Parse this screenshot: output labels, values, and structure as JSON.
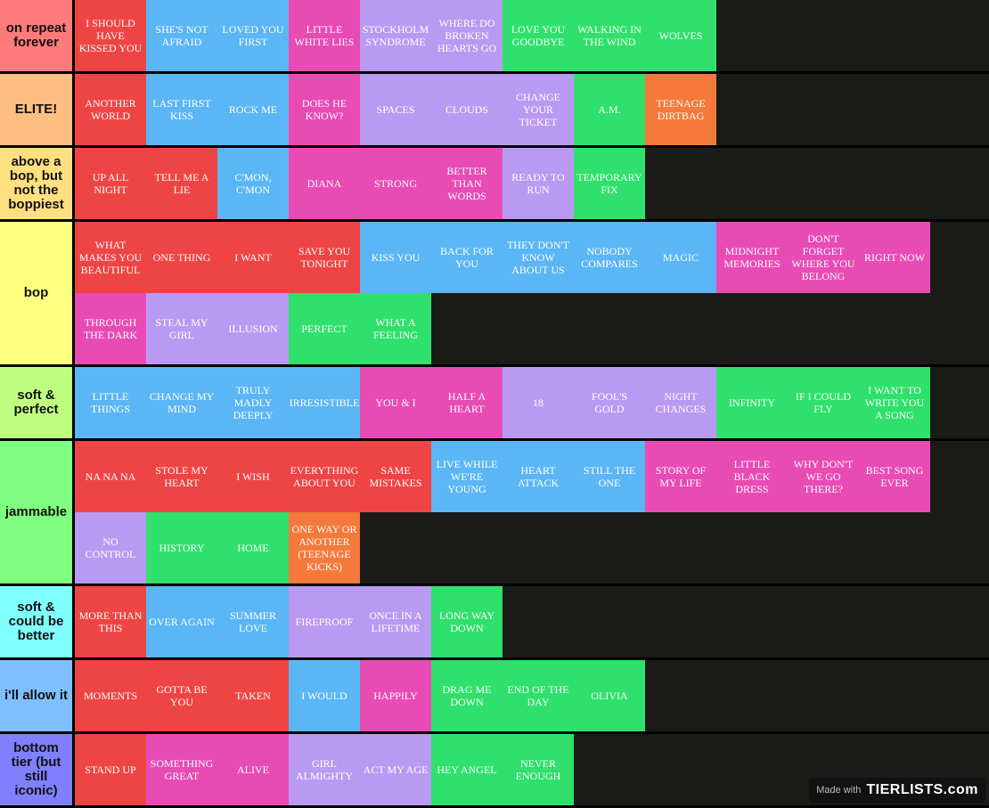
{
  "colors": {
    "red": "#ef4444",
    "blue": "#5bb6f5",
    "pink": "#e84bb4",
    "purple": "#b99af2",
    "green": "#2fe06c",
    "orange": "#f4793a",
    "background": "#1a1a17"
  },
  "tiers": [
    {
      "label": "on repeat forever",
      "color": "#ff7b7b",
      "items": [
        {
          "text": "I SHOULD HAVE KISSED YOU",
          "color": "red"
        },
        {
          "text": "SHE'S NOT AFRAID",
          "color": "blue"
        },
        {
          "text": "LOVED YOU FIRST",
          "color": "blue"
        },
        {
          "text": "LITTLE WHITE LIES",
          "color": "pink"
        },
        {
          "text": "STOCKHOLM SYNDROME",
          "color": "purple"
        },
        {
          "text": "WHERE DO BROKEN HEARTS GO",
          "color": "purple"
        },
        {
          "text": "LOVE YOU GOODBYE",
          "color": "green"
        },
        {
          "text": "WALKING IN THE WIND",
          "color": "green"
        },
        {
          "text": "WOLVES",
          "color": "green"
        }
      ]
    },
    {
      "label": "ELITE!",
      "color": "#ffbf80",
      "items": [
        {
          "text": "ANOTHER WORLD",
          "color": "red"
        },
        {
          "text": "LAST FIRST KISS",
          "color": "blue"
        },
        {
          "text": "ROCK ME",
          "color": "blue"
        },
        {
          "text": "DOES HE KNOW?",
          "color": "pink"
        },
        {
          "text": "SPACES",
          "color": "purple"
        },
        {
          "text": "CLOUDS",
          "color": "purple"
        },
        {
          "text": "CHANGE YOUR TICKET",
          "color": "purple"
        },
        {
          "text": "A.M.",
          "color": "green"
        },
        {
          "text": "TEENAGE DIRTBAG",
          "color": "orange"
        }
      ]
    },
    {
      "label": "above a bop, but not the boppiest",
      "color": "#ffdf80",
      "items": [
        {
          "text": "UP ALL NIGHT",
          "color": "red"
        },
        {
          "text": "TELL ME A LIE",
          "color": "red"
        },
        {
          "text": "C'MON, C'MON",
          "color": "blue"
        },
        {
          "text": "DIANA",
          "color": "pink"
        },
        {
          "text": "STRONG",
          "color": "pink"
        },
        {
          "text": "BETTER THAN WORDS",
          "color": "pink"
        },
        {
          "text": "READY TO RUN",
          "color": "purple"
        },
        {
          "text": "TEMPORARY FIX",
          "color": "green"
        }
      ]
    },
    {
      "label": "bop",
      "color": "#ffff80",
      "items": [
        {
          "text": "WHAT MAKES YOU BEAUTIFUL",
          "color": "red"
        },
        {
          "text": "ONE THING",
          "color": "red"
        },
        {
          "text": "I WANT",
          "color": "red"
        },
        {
          "text": "SAVE YOU TONIGHT",
          "color": "red"
        },
        {
          "text": "KISS YOU",
          "color": "blue"
        },
        {
          "text": "BACK FOR YOU",
          "color": "blue"
        },
        {
          "text": "THEY DON'T KNOW ABOUT US",
          "color": "blue"
        },
        {
          "text": "NOBODY COMPARES",
          "color": "blue"
        },
        {
          "text": "MAGIC",
          "color": "blue"
        },
        {
          "text": "MIDNIGHT MEMORIES",
          "color": "pink"
        },
        {
          "text": "DON'T FORGET WHERE YOU BELONG",
          "color": "pink"
        },
        {
          "text": "RIGHT NOW",
          "color": "pink"
        },
        {
          "text": "THROUGH THE DARK",
          "color": "pink"
        },
        {
          "text": "STEAL MY GIRL",
          "color": "purple"
        },
        {
          "text": "ILLUSION",
          "color": "purple"
        },
        {
          "text": "PERFECT",
          "color": "green"
        },
        {
          "text": "WHAT A FEELING",
          "color": "green"
        }
      ]
    },
    {
      "label": "soft & perfect",
      "color": "#bfff80",
      "items": [
        {
          "text": "LITTLE THINGS",
          "color": "blue"
        },
        {
          "text": "CHANGE MY MIND",
          "color": "blue"
        },
        {
          "text": "TRULY MADLY DEEPLY",
          "color": "blue"
        },
        {
          "text": "IRRESISTIBLE",
          "color": "blue"
        },
        {
          "text": "YOU & I",
          "color": "pink"
        },
        {
          "text": "HALF A HEART",
          "color": "pink"
        },
        {
          "text": "18",
          "color": "purple"
        },
        {
          "text": "FOOL'S GOLD",
          "color": "purple"
        },
        {
          "text": "NIGHT CHANGES",
          "color": "purple"
        },
        {
          "text": "INFINITY",
          "color": "green"
        },
        {
          "text": "IF I COULD FLY",
          "color": "green"
        },
        {
          "text": "I WANT TO WRITE YOU A SONG",
          "color": "green"
        }
      ]
    },
    {
      "label": "jammable",
      "color": "#80ff80",
      "items": [
        {
          "text": "NA NA NA",
          "color": "red"
        },
        {
          "text": "STOLE MY HEART",
          "color": "red"
        },
        {
          "text": "I WISH",
          "color": "red"
        },
        {
          "text": "EVERYTHING ABOUT YOU",
          "color": "red"
        },
        {
          "text": "SAME MISTAKES",
          "color": "red"
        },
        {
          "text": "LIVE WHILE WE'RE YOUNG",
          "color": "blue"
        },
        {
          "text": "HEART ATTACK",
          "color": "blue"
        },
        {
          "text": "STILL THE ONE",
          "color": "blue"
        },
        {
          "text": "STORY OF MY LIFE",
          "color": "pink"
        },
        {
          "text": "LITTLE BLACK DRESS",
          "color": "pink"
        },
        {
          "text": "WHY DON'T WE GO THERE?",
          "color": "pink"
        },
        {
          "text": "BEST SONG EVER",
          "color": "pink"
        },
        {
          "text": "NO CONTROL",
          "color": "purple"
        },
        {
          "text": "HISTORY",
          "color": "green"
        },
        {
          "text": "HOME",
          "color": "green"
        },
        {
          "text": "ONE WAY OR ANOTHER (TEENAGE KICKS)",
          "color": "orange"
        }
      ]
    },
    {
      "label": "soft & could be better",
      "color": "#80ffff",
      "items": [
        {
          "text": "MORE THAN THIS",
          "color": "red"
        },
        {
          "text": "OVER AGAIN",
          "color": "blue"
        },
        {
          "text": "SUMMER LOVE",
          "color": "blue"
        },
        {
          "text": "FIREPROOF",
          "color": "purple"
        },
        {
          "text": "ONCE IN A LIFETIME",
          "color": "purple"
        },
        {
          "text": "LONG WAY DOWN",
          "color": "green"
        }
      ]
    },
    {
      "label": "i'll allow it",
      "color": "#80bfff",
      "items": [
        {
          "text": "MOMENTS",
          "color": "red"
        },
        {
          "text": "GOTTA BE YOU",
          "color": "red"
        },
        {
          "text": "TAKEN",
          "color": "red"
        },
        {
          "text": "I WOULD",
          "color": "blue"
        },
        {
          "text": "HAPPILY",
          "color": "pink"
        },
        {
          "text": "DRAG ME DOWN",
          "color": "green"
        },
        {
          "text": "END OF THE DAY",
          "color": "green"
        },
        {
          "text": "OLIVIA",
          "color": "green"
        }
      ]
    },
    {
      "label": "bottom tier (but still iconic)",
      "color": "#8080ff",
      "items": [
        {
          "text": "STAND UP",
          "color": "red"
        },
        {
          "text": "SOMETHING GREAT",
          "color": "pink"
        },
        {
          "text": "ALIVE",
          "color": "pink"
        },
        {
          "text": "GIRL ALMIGHTY",
          "color": "purple"
        },
        {
          "text": "ACT MY AGE",
          "color": "purple"
        },
        {
          "text": "HEY ANGEL",
          "color": "green"
        },
        {
          "text": "NEVER ENOUGH",
          "color": "green"
        }
      ]
    }
  ],
  "watermark": {
    "prefix": "Made with",
    "brand": "TIERLISTS.com"
  }
}
